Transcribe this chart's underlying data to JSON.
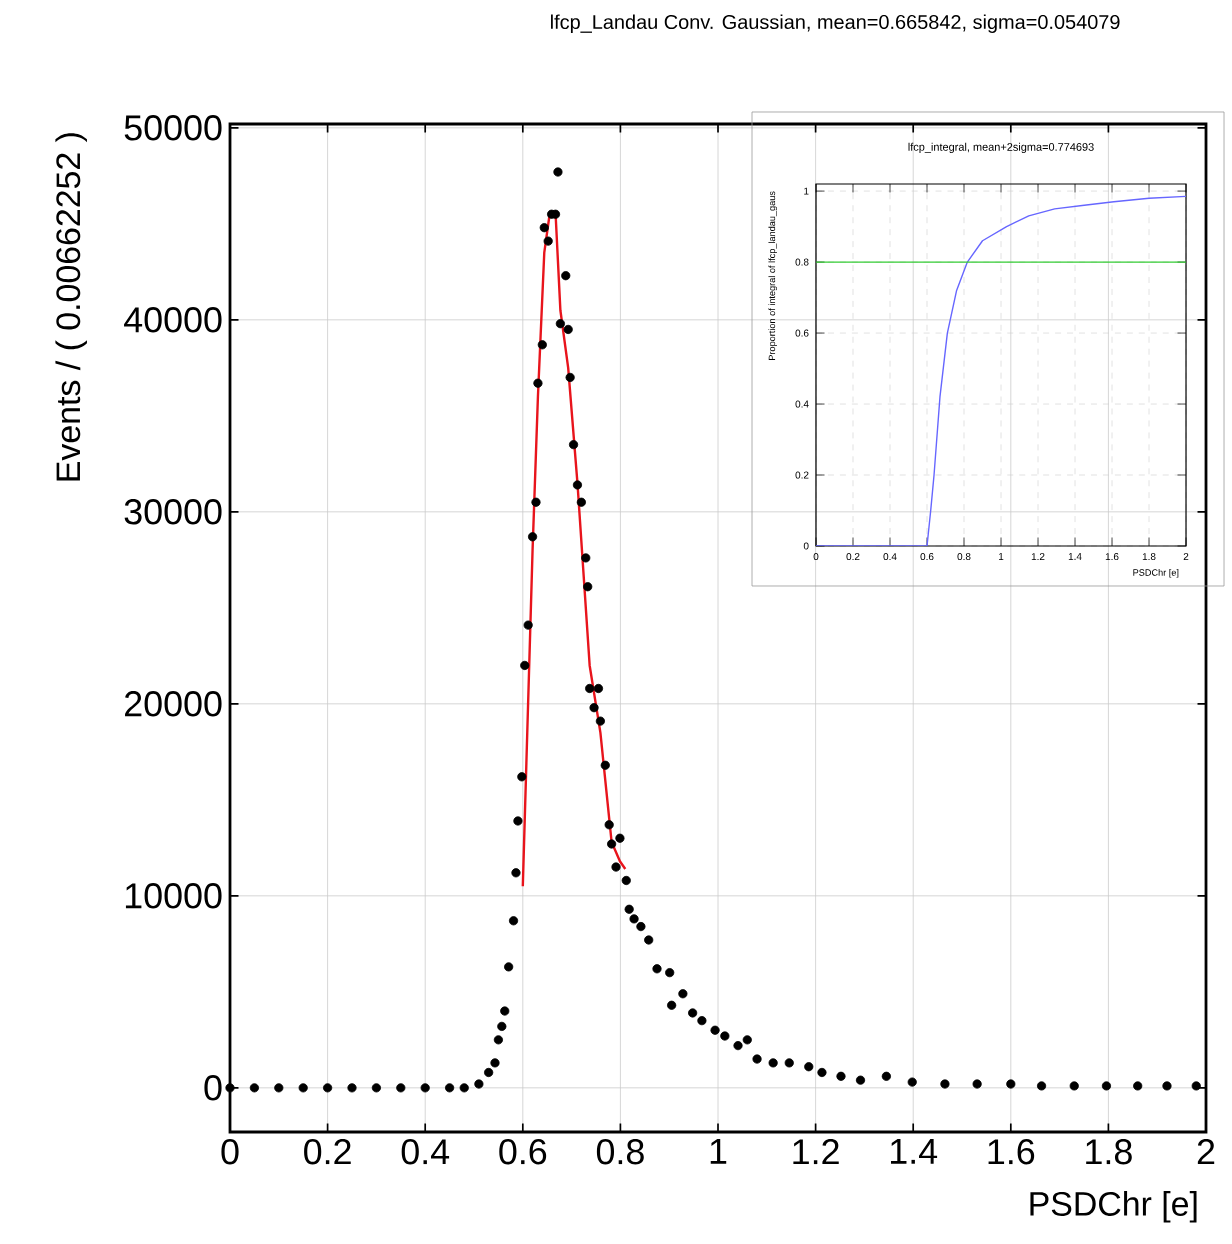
{
  "chart_data": [
    {
      "type": "scatter",
      "title": "lfcp_Landau Conv. Gaussian, mean=0.665842, sigma=0.054079",
      "xlabel": "PSDChr [e]",
      "ylabel": "Events / ( 0.00662252 )",
      "xlim": [
        0,
        2
      ],
      "ylim": [
        -2300,
        50200
      ],
      "xticks": [
        0,
        0.2,
        0.4,
        0.6,
        0.8,
        1,
        1.2,
        1.4,
        1.6,
        1.8,
        2
      ],
      "yticks": [
        0,
        10000,
        20000,
        30000,
        40000,
        50000
      ],
      "grid": true,
      "series": [
        {
          "color": "#000000",
          "marker": "circle",
          "x": [
            0,
            0.05,
            0.1,
            0.15,
            0.2,
            0.25,
            0.3,
            0.35,
            0.4,
            0.45,
            0.48,
            0.51,
            0.53,
            0.543,
            0.55,
            0.557,
            0.563,
            0.571,
            0.581,
            0.586,
            0.59,
            0.598,
            0.604,
            0.611,
            0.62,
            0.627,
            0.631,
            0.64,
            0.644,
            0.652,
            0.659,
            0.667,
            0.672,
            0.677,
            0.688,
            0.693,
            0.697,
            0.704,
            0.712,
            0.72,
            0.729,
            0.733,
            0.737,
            0.746,
            0.755,
            0.759,
            0.769,
            0.777,
            0.782,
            0.791,
            0.799,
            0.812,
            0.818,
            0.828,
            0.842,
            0.858,
            0.875,
            0.901,
            0.905,
            0.928,
            0.948,
            0.967,
            0.994,
            1.014,
            1.041,
            1.06,
            1.08,
            1.113,
            1.146,
            1.186,
            1.213,
            1.252,
            1.292,
            1.345,
            1.398,
            1.465,
            1.531,
            1.6,
            1.663,
            1.73,
            1.796,
            1.86,
            1.92,
            1.98
          ],
          "values": [
            0,
            0,
            0,
            0,
            0,
            0,
            0,
            0,
            0,
            0,
            0,
            200,
            800,
            1300,
            2500,
            3200,
            4000,
            6300,
            8700,
            11200,
            13900,
            16200,
            22000,
            24100,
            28700,
            30500,
            36700,
            38700,
            44800,
            44100,
            45500,
            45500,
            47700,
            39800,
            42300,
            39500,
            37000,
            33500,
            31400,
            30500,
            27600,
            26100,
            20800,
            19800,
            20800,
            19100,
            16800,
            13700,
            12700,
            11500,
            13000,
            10800,
            9300,
            8800,
            8400,
            7700,
            6200,
            6000,
            4300,
            4900,
            3900,
            3500,
            3000,
            2700,
            2200,
            2500,
            1500,
            1300,
            1300,
            1100,
            800,
            600,
            400,
            600,
            300,
            200,
            200,
            200,
            100,
            100,
            100,
            100,
            100,
            100
          ]
        },
        {
          "type": "line",
          "color": "#e8141c",
          "x": [
            0.6,
            0.62,
            0.631,
            0.644,
            0.655,
            0.667,
            0.677,
            0.693,
            0.712,
            0.737,
            0.759,
            0.782,
            0.799,
            0.81
          ],
          "values": [
            10500,
            28000,
            36000,
            43500,
            45500,
            45600,
            40500,
            37500,
            31500,
            22000,
            18500,
            12800,
            11800,
            11400
          ]
        }
      ]
    },
    {
      "type": "line",
      "title": "lfcp_integral, mean+2sigma=0.774693",
      "xlabel": "PSDChr [e]",
      "ylabel": "Proportion of integral of lfcp_landau_gaus",
      "xlim": [
        0,
        2
      ],
      "ylim": [
        0,
        1.02
      ],
      "xticks": [
        0,
        0.2,
        0.4,
        0.6,
        0.8,
        1,
        1.2,
        1.4,
        1.6,
        1.8,
        2
      ],
      "yticks": [
        0,
        0.2,
        0.4,
        0.6,
        0.8,
        1
      ],
      "grid": true,
      "ref_lines": [
        {
          "axis": "y",
          "value": 0.8,
          "color": "#33cc33"
        }
      ],
      "series": [
        {
          "color": "#6666ff",
          "x": [
            0,
            0.3,
            0.6,
            0.62,
            0.638,
            0.67,
            0.71,
            0.76,
            0.818,
            0.9,
            1.03,
            1.15,
            1.29,
            1.45,
            1.61,
            1.8,
            2.0
          ],
          "values": [
            0,
            0,
            0,
            0.1,
            0.2,
            0.42,
            0.6,
            0.72,
            0.8,
            0.86,
            0.9,
            0.93,
            0.95,
            0.96,
            0.97,
            0.98,
            0.985
          ]
        }
      ]
    }
  ]
}
